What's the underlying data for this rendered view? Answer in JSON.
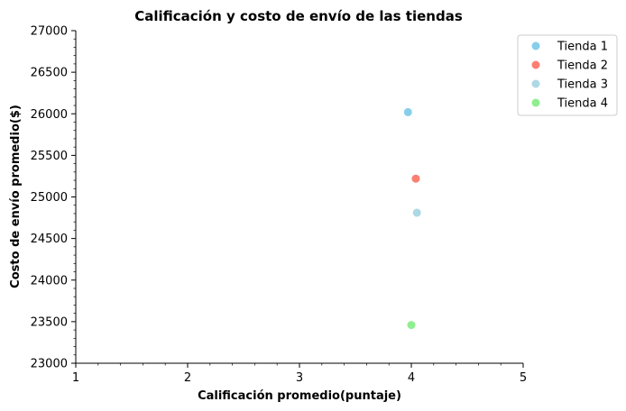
{
  "chart_data": {
    "type": "scatter",
    "title": "Calificación y costo de envío de las tiendas",
    "xlabel": "Calificación promedio(puntaje)",
    "ylabel": "Costo de envío promedio($)",
    "xlim": [
      1,
      5
    ],
    "ylim": [
      23000,
      27000
    ],
    "x_ticks": [
      1,
      2,
      3,
      4,
      5
    ],
    "y_ticks": [
      23000,
      23500,
      24000,
      24500,
      25000,
      25500,
      26000,
      26500,
      27000
    ],
    "grid": false,
    "legend_position": "top-right, outside",
    "series": [
      {
        "name": "Tienda 1",
        "color": "#87ceeb",
        "x": [
          3.97
        ],
        "y": [
          26020
        ]
      },
      {
        "name": "Tienda 2",
        "color": "#fa8072",
        "x": [
          4.04
        ],
        "y": [
          25220
        ]
      },
      {
        "name": "Tienda 3",
        "color": "#add8e6",
        "x": [
          4.05
        ],
        "y": [
          24810
        ]
      },
      {
        "name": "Tienda 4",
        "color": "#90ee90",
        "x": [
          4.0
        ],
        "y": [
          23460
        ]
      }
    ]
  }
}
